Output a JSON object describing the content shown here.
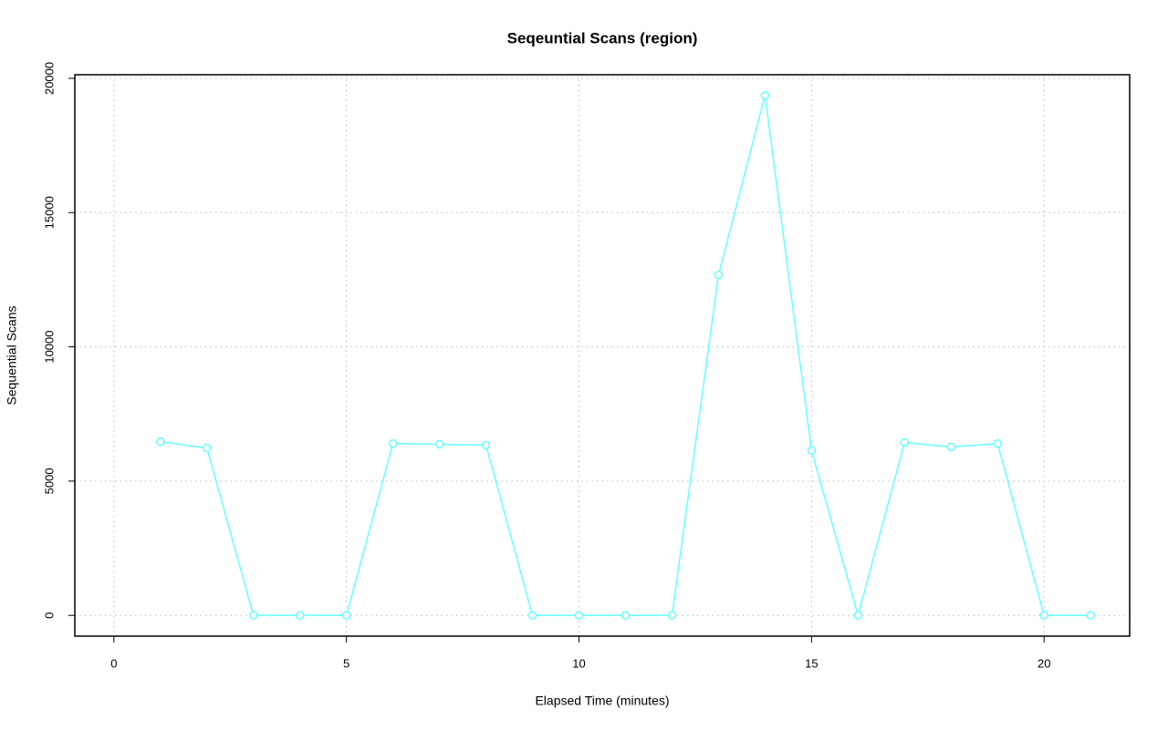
{
  "chart_data": {
    "type": "line",
    "title": "Seqeuntial Scans (region)",
    "x_label": "Elapsed Time (minutes)",
    "y_label": "Sequential Scans",
    "x": [
      1,
      2,
      3,
      4,
      5,
      6,
      7,
      8,
      9,
      10,
      11,
      12,
      13,
      14,
      15,
      16,
      17,
      18,
      19,
      20,
      21
    ],
    "series": [
      {
        "name": "region",
        "color": "#66ffff",
        "values": [
          6470,
          6230,
          0,
          0,
          0,
          6400,
          6370,
          6340,
          0,
          0,
          0,
          0,
          12680,
          19360,
          6140,
          0,
          6440,
          6270,
          6400,
          0,
          0
        ]
      }
    ],
    "xlim": [
      -0.84,
      21.84
    ],
    "xticks": [
      0,
      5,
      10,
      15,
      20
    ],
    "ylim": [
      -774,
      20134
    ],
    "yticks": [
      0,
      5000,
      10000,
      15000,
      20000
    ],
    "grid": true,
    "legend": false
  }
}
